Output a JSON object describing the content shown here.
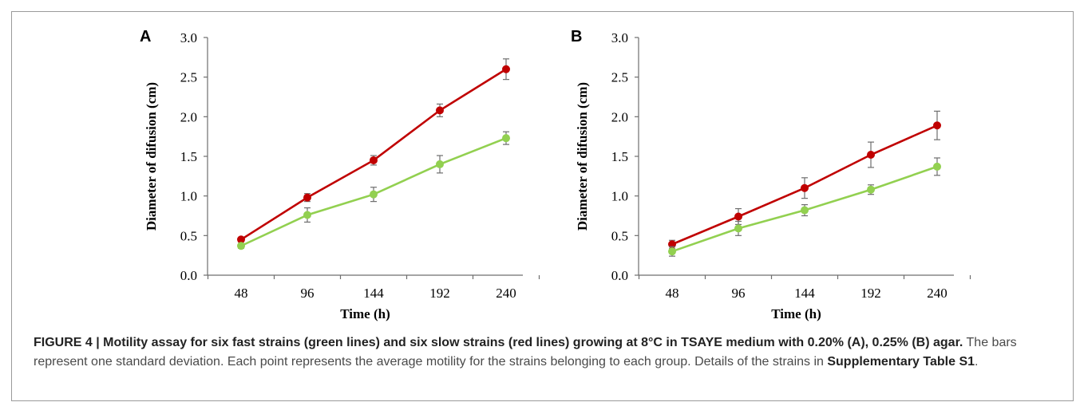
{
  "colors": {
    "red": "#c00000",
    "green": "#92d050",
    "error_bar": "#6e6e6e"
  },
  "caption": {
    "figure_label": "FIGURE 4 | ",
    "bold_text": "Motility assay for six fast strains (green lines) and six slow strains (red lines) growing at 8°C in TSAYE medium with 0.20% (A), 0.25% (B) agar.",
    "body_text": " The bars represent one standard deviation. Each point represents the average motility for the strains belonging to each group. Details of the strains in ",
    "bold_ref": "Supplementary Table S1",
    "end": "."
  },
  "chart_data": [
    {
      "type": "line",
      "panel": "A",
      "xlabel": "Time (h)",
      "ylabel": "Diameter of difusion (cm)",
      "categories": [
        "48",
        "96",
        "144",
        "192",
        "240"
      ],
      "ylim": [
        0,
        3.0
      ],
      "yticks": [
        "0.0",
        "0.5",
        "1.0",
        "1.5",
        "2.0",
        "2.5",
        "3.0"
      ],
      "grid": false,
      "series": [
        {
          "color": "#c00000",
          "values": [
            0.45,
            0.98,
            1.45,
            2.08,
            2.6
          ],
          "errors": [
            0.02,
            0.05,
            0.06,
            0.08,
            0.13
          ]
        },
        {
          "color": "#92d050",
          "values": [
            0.37,
            0.76,
            1.02,
            1.4,
            1.73
          ],
          "errors": [
            0.03,
            0.09,
            0.09,
            0.11,
            0.08
          ]
        }
      ]
    },
    {
      "type": "line",
      "panel": "B",
      "xlabel": "Time (h)",
      "ylabel": "Diameter of difusion (cm)",
      "categories": [
        "48",
        "96",
        "144",
        "192",
        "240"
      ],
      "ylim": [
        0,
        3.0
      ],
      "yticks": [
        "0.0",
        "0.5",
        "1.0",
        "1.5",
        "2.0",
        "2.5",
        "3.0"
      ],
      "grid": false,
      "series": [
        {
          "color": "#c00000",
          "values": [
            0.39,
            0.74,
            1.1,
            1.52,
            1.89
          ],
          "errors": [
            0.05,
            0.1,
            0.13,
            0.16,
            0.18
          ]
        },
        {
          "color": "#92d050",
          "values": [
            0.3,
            0.59,
            0.82,
            1.08,
            1.37
          ],
          "errors": [
            0.06,
            0.09,
            0.07,
            0.06,
            0.11
          ]
        }
      ]
    }
  ]
}
